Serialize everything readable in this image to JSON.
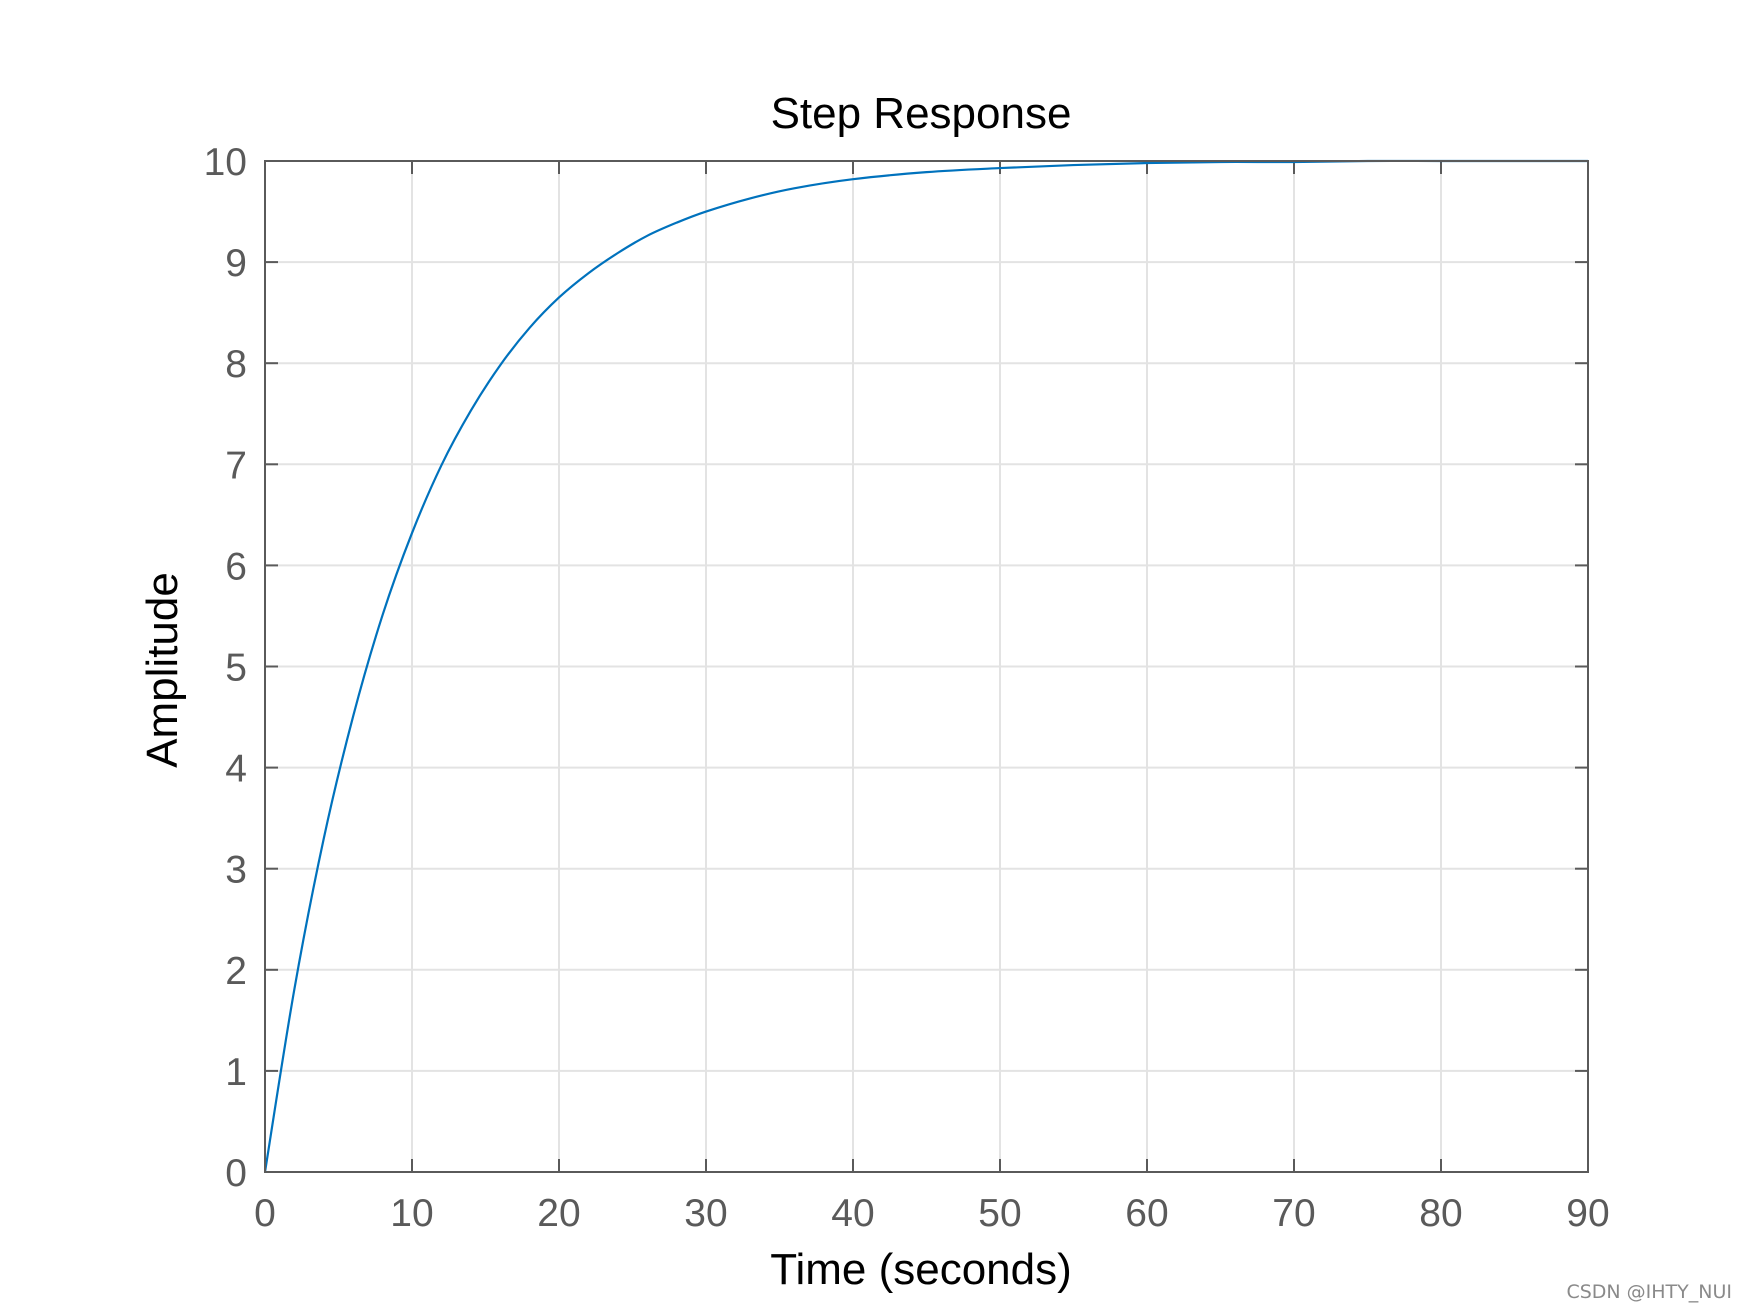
{
  "chart_data": {
    "type": "line",
    "title": "Step Response",
    "xlabel": "Time (seconds)",
    "ylabel": "Amplitude",
    "xlim": [
      0,
      90
    ],
    "ylim": [
      0,
      10
    ],
    "xticks": [
      0,
      10,
      20,
      30,
      40,
      50,
      60,
      70,
      80,
      90
    ],
    "yticks": [
      0,
      1,
      2,
      3,
      4,
      5,
      6,
      7,
      8,
      9,
      10
    ],
    "grid": true,
    "legend": "none",
    "steady_state": 10,
    "series": [
      {
        "color": "#0072bd",
        "x": [
          0,
          2,
          4,
          6,
          8,
          10,
          12,
          14,
          16,
          18,
          20,
          22,
          24,
          26,
          28,
          30,
          33,
          36,
          40,
          45,
          50,
          55,
          60,
          65,
          70,
          75,
          80,
          85,
          90
        ],
        "y": [
          0,
          1.81,
          3.3,
          4.51,
          5.51,
          6.32,
          6.99,
          7.53,
          7.98,
          8.35,
          8.65,
          8.89,
          9.09,
          9.26,
          9.39,
          9.5,
          9.63,
          9.73,
          9.82,
          9.89,
          9.93,
          9.96,
          9.98,
          9.99,
          9.99,
          10.0,
          10.0,
          10.0,
          10.0
        ]
      }
    ]
  },
  "colors": {
    "line": "#0072bd",
    "grid": "#e3e3e3",
    "axis": "#5a5a5a",
    "reference": "#000000"
  },
  "watermark": "CSDN @IHTY_NUI"
}
